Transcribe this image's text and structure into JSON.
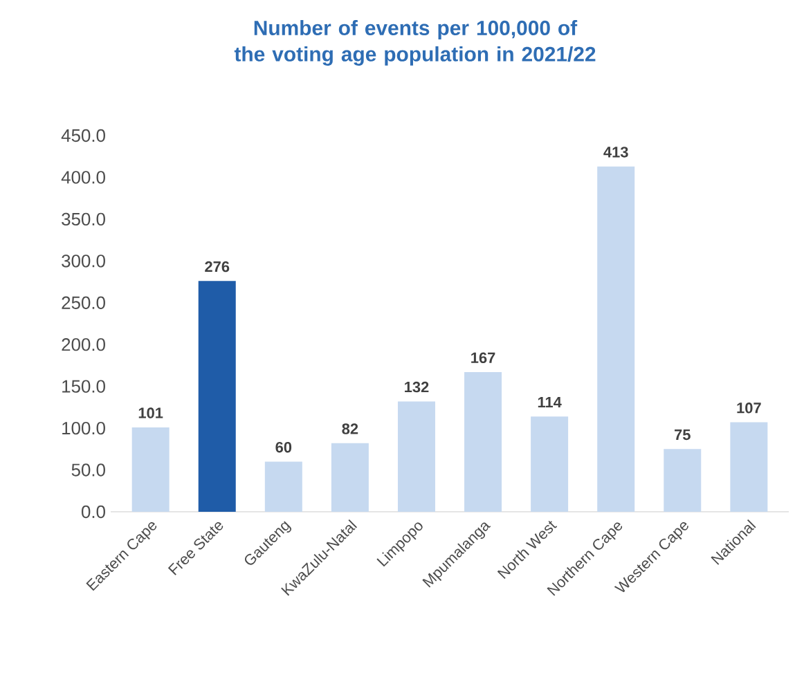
{
  "chart_data": {
    "type": "bar",
    "title": "Number of events per 100,000 of the voting age population in 2021/22",
    "categories": [
      "Eastern Cape",
      "Free State",
      "Gauteng",
      "KwaZulu-Natal",
      "Limpopo",
      "Mpumalanga",
      "North West",
      "Northern Cape",
      "Western Cape",
      "National"
    ],
    "values": [
      101,
      276,
      60,
      82,
      132,
      167,
      114,
      413,
      75,
      107
    ],
    "colors": [
      "#c6d9f0",
      "#1f5ca8",
      "#c6d9f0",
      "#c6d9f0",
      "#c6d9f0",
      "#c6d9f0",
      "#c6d9f0",
      "#c6d9f0",
      "#c6d9f0",
      "#c6d9f0"
    ],
    "ylim": [
      0,
      450
    ],
    "yticks": [
      {
        "value": 0,
        "label": "0.0"
      },
      {
        "value": 50,
        "label": "50.0"
      },
      {
        "value": 100,
        "label": "100.0"
      },
      {
        "value": 150,
        "label": "150.0"
      },
      {
        "value": 200,
        "label": "200.0"
      },
      {
        "value": 250,
        "label": "250.0"
      },
      {
        "value": 300,
        "label": "300.0"
      },
      {
        "value": 350,
        "label": "350.0"
      },
      {
        "value": 400,
        "label": "400.0"
      },
      {
        "value": 450,
        "label": "450.0"
      }
    ],
    "data_labels": true,
    "grid": false
  }
}
